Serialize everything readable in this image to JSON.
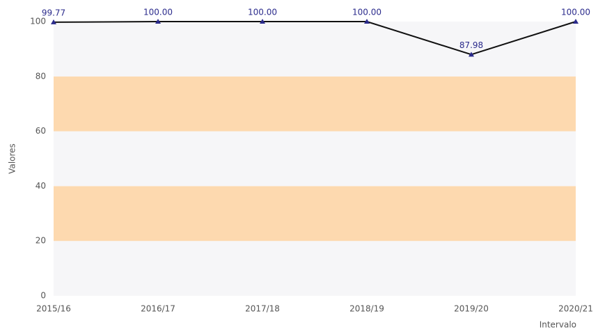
{
  "chart_data": {
    "type": "line",
    "categories": [
      "2015/16",
      "2016/17",
      "2017/18",
      "2018/19",
      "2019/20",
      "2020/21"
    ],
    "series": [
      {
        "name": null,
        "color": "#111111",
        "marker_color": "#2b2b8c",
        "values": [
          99.77,
          100,
          100,
          100,
          87.98,
          100
        ],
        "value_labels": [
          "99.77",
          "100.00",
          "100.00",
          "100.00",
          "87.98",
          "100.00"
        ]
      }
    ],
    "ylim": [
      0,
      100
    ],
    "yticks": [
      0,
      20,
      40,
      60,
      80,
      100
    ],
    "ylabel": "Valores",
    "xlabel": "Intervalo",
    "band_colors": [
      "#f6f6f8",
      "#fdd9af"
    ]
  }
}
